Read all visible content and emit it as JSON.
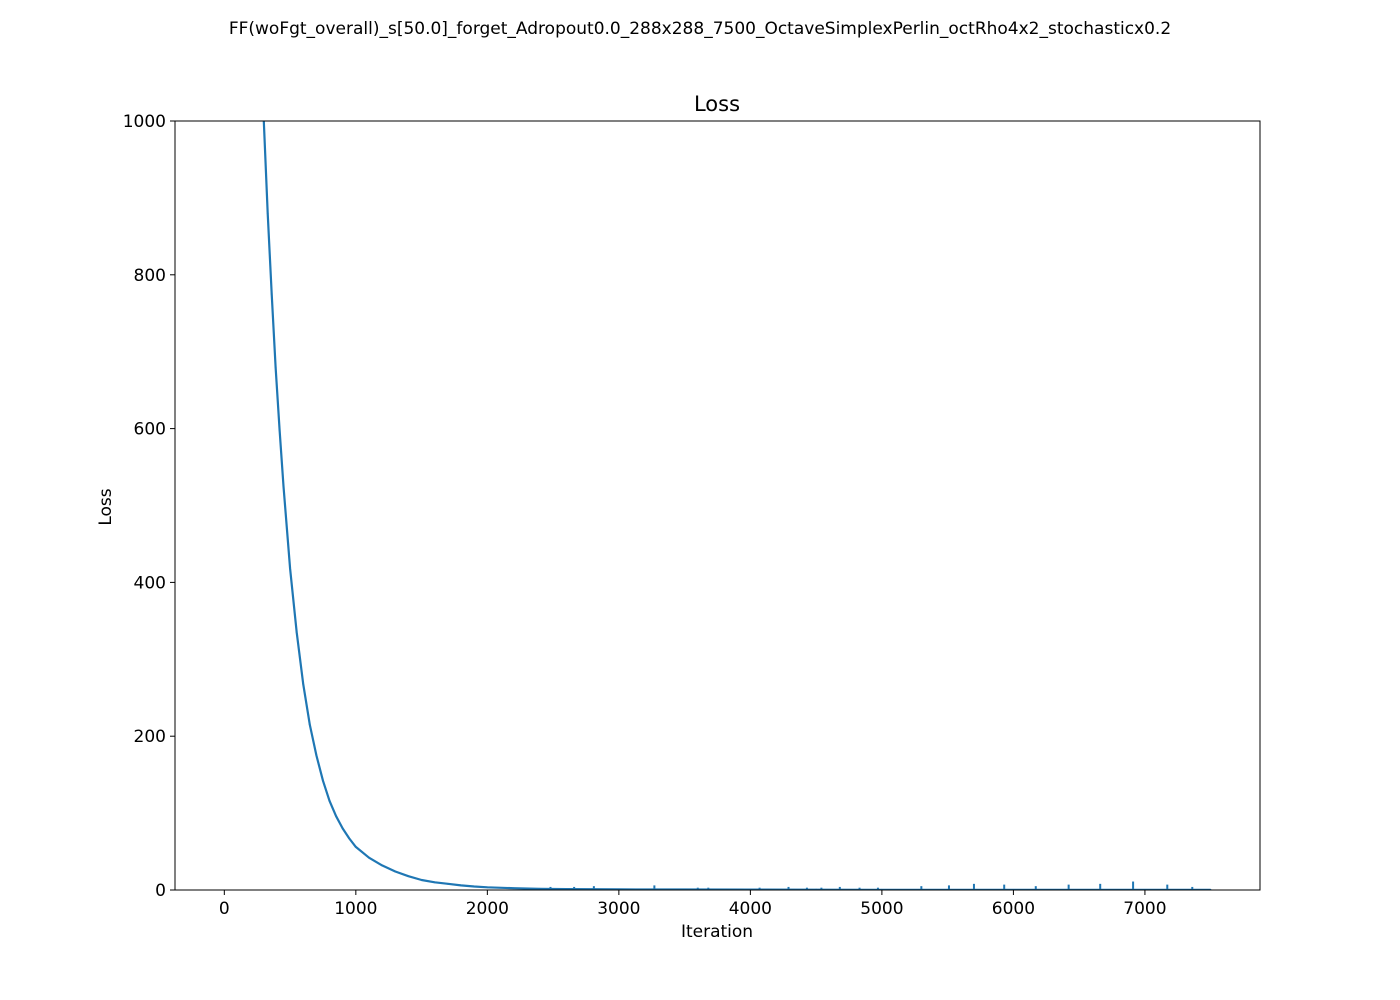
{
  "figure": {
    "suptitle": "FF(woFgt_overall)_s[50.0]_forget_Adropout0.0_288x288_7500_OctaveSimplexPerlin_octRho4x2_stochasticx0.2"
  },
  "chart_data": {
    "type": "line",
    "title": "Loss",
    "xlabel": "Iteration",
    "ylabel": "Loss",
    "xlim": [
      -375,
      7875
    ],
    "ylim": [
      0,
      1000
    ],
    "xticks": [
      0,
      1000,
      2000,
      3000,
      4000,
      5000,
      6000,
      7000
    ],
    "yticks": [
      0,
      200,
      400,
      600,
      800,
      1000
    ],
    "grid": false,
    "series": [
      {
        "name": "loss",
        "color": "#1f77b4",
        "x": [
          300,
          330,
          360,
          390,
          420,
          450,
          500,
          550,
          600,
          650,
          700,
          750,
          800,
          850,
          900,
          950,
          1000,
          1100,
          1200,
          1300,
          1400,
          1500,
          1600,
          1700,
          1800,
          1900,
          2000,
          2200,
          2400,
          2600,
          2800,
          3000,
          3500,
          4000,
          4500,
          5000,
          5500,
          6000,
          6500,
          7000,
          7500
        ],
        "y": [
          1000,
          880,
          775,
          680,
          598,
          525,
          418,
          335,
          268,
          215,
          175,
          142,
          116,
          96,
          80,
          67,
          56,
          42,
          32,
          24,
          18,
          13,
          10,
          8,
          6,
          4.5,
          3.5,
          2.3,
          1.6,
          1.2,
          1.0,
          0.8,
          0.6,
          0.5,
          0.4,
          0.3,
          0.3,
          0.2,
          0.2,
          0.2,
          0.2
        ]
      }
    ],
    "spikes": {
      "x": [
        2480,
        2660,
        2810,
        3270,
        3600,
        3680,
        4070,
        4290,
        4430,
        4540,
        4680,
        4830,
        4970,
        5300,
        5510,
        5700,
        5930,
        6170,
        6420,
        6660,
        6910,
        7170,
        7360
      ],
      "height": [
        4,
        4,
        5,
        6,
        3,
        3,
        3,
        4,
        3,
        3,
        4,
        3,
        3,
        5,
        6,
        8,
        7,
        5,
        7,
        8,
        11,
        7,
        4
      ]
    }
  }
}
